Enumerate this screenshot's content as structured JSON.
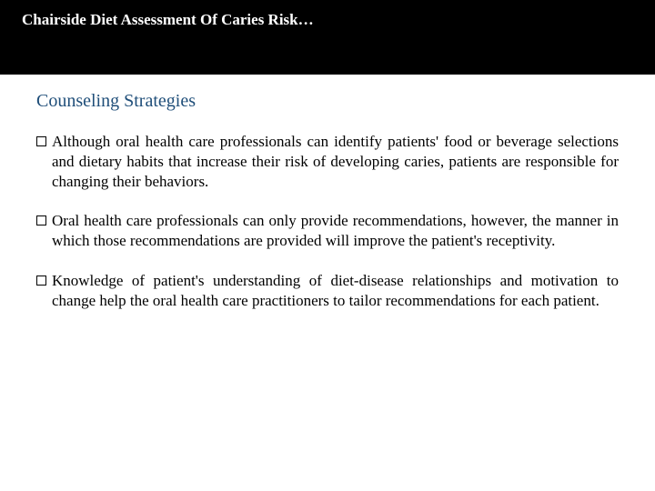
{
  "header": {
    "title": "Chairside Diet Assessment Of Caries Risk…"
  },
  "section": {
    "heading": "Counseling Strategies",
    "heading_color": "#1f4e79"
  },
  "bullets": [
    {
      "text": "Although oral health care professionals can identify patients' food or beverage selections and dietary habits that increase their risk of developing caries, patients are responsible for changing their behaviors."
    },
    {
      "text": "Oral health care professionals can only provide recommendations, however, the manner in which those recommendations are provided will improve the patient's receptivity."
    },
    {
      "text": "Knowledge of patient's understanding of diet-disease relationships and motivation to change help the oral health care practitioners to tailor recommendations for each patient."
    }
  ],
  "colors": {
    "header_bg": "#000000",
    "header_text": "#ffffff",
    "body_bg": "#ffffff",
    "body_text": "#000000"
  },
  "typography": {
    "header_fontsize": 17,
    "heading_fontsize": 20,
    "body_fontsize": 17
  }
}
